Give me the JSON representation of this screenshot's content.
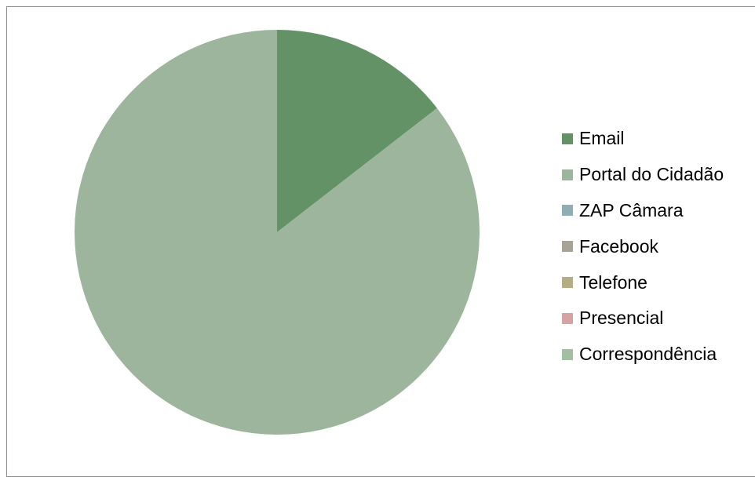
{
  "chart_data": {
    "type": "pie",
    "title": "",
    "categories": [
      "Email",
      "Portal do Cidadão",
      "ZAP Câmara",
      "Facebook",
      "Telefone",
      "Presencial",
      "Correspondência"
    ],
    "values": [
      14.5,
      85.5,
      0,
      0,
      0,
      0,
      0
    ],
    "unit": "%",
    "start_angle_deg": 0,
    "direction": "clockwise",
    "legend_position": "right",
    "colors": [
      "#639266",
      "#9db59c",
      "#8faeb3",
      "#a6a396",
      "#b5ae83",
      "#d4a3a3",
      "#a2bfa1"
    ]
  }
}
